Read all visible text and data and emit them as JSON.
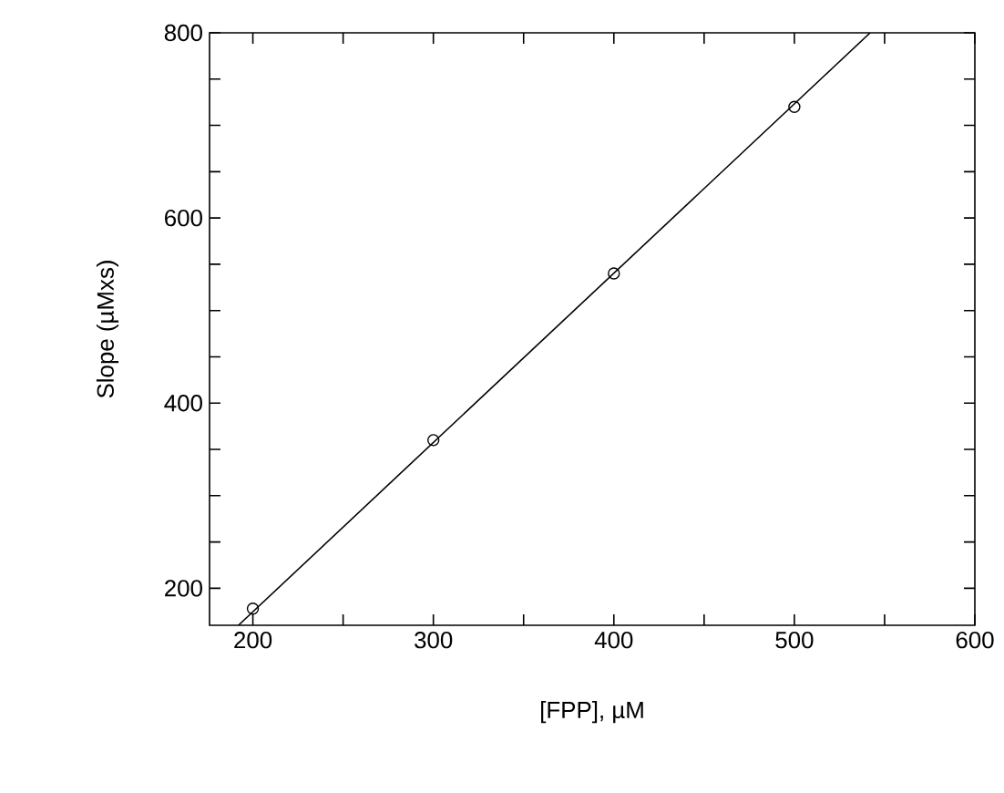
{
  "chart_data": {
    "type": "scatter",
    "xlabel": "[FPP], µM",
    "ylabel": "Slope  (µMxs)",
    "xlim": [
      176,
      600
    ],
    "ylim": [
      160,
      800
    ],
    "xticks": [
      200,
      {
        "value": 250,
        "label": null
      },
      300,
      {
        "value": 350,
        "label": null
      },
      400,
      {
        "value": 450,
        "label": null
      },
      500,
      {
        "value": 550,
        "label": null
      },
      600
    ],
    "yticks": [
      200,
      {
        "value": 250,
        "label": null
      },
      {
        "value": 300,
        "label": null
      },
      {
        "value": 350,
        "label": null
      },
      400,
      {
        "value": 450,
        "label": null
      },
      {
        "value": 500,
        "label": null
      },
      {
        "value": 550,
        "label": null
      },
      600,
      {
        "value": 650,
        "label": null
      },
      {
        "value": 700,
        "label": null
      },
      {
        "value": 750,
        "label": null
      },
      800
    ],
    "series": [
      {
        "x": [
          200,
          300,
          400,
          500
        ],
        "values": [
          178,
          360,
          540,
          720
        ],
        "color": "#000000",
        "marker": "circle"
      },
      {
        "type": "line",
        "x": [
          192,
          542
        ],
        "values": [
          160,
          800
        ],
        "color": "#000000",
        "marker": "none"
      }
    ],
    "grid": false,
    "legend": false
  }
}
